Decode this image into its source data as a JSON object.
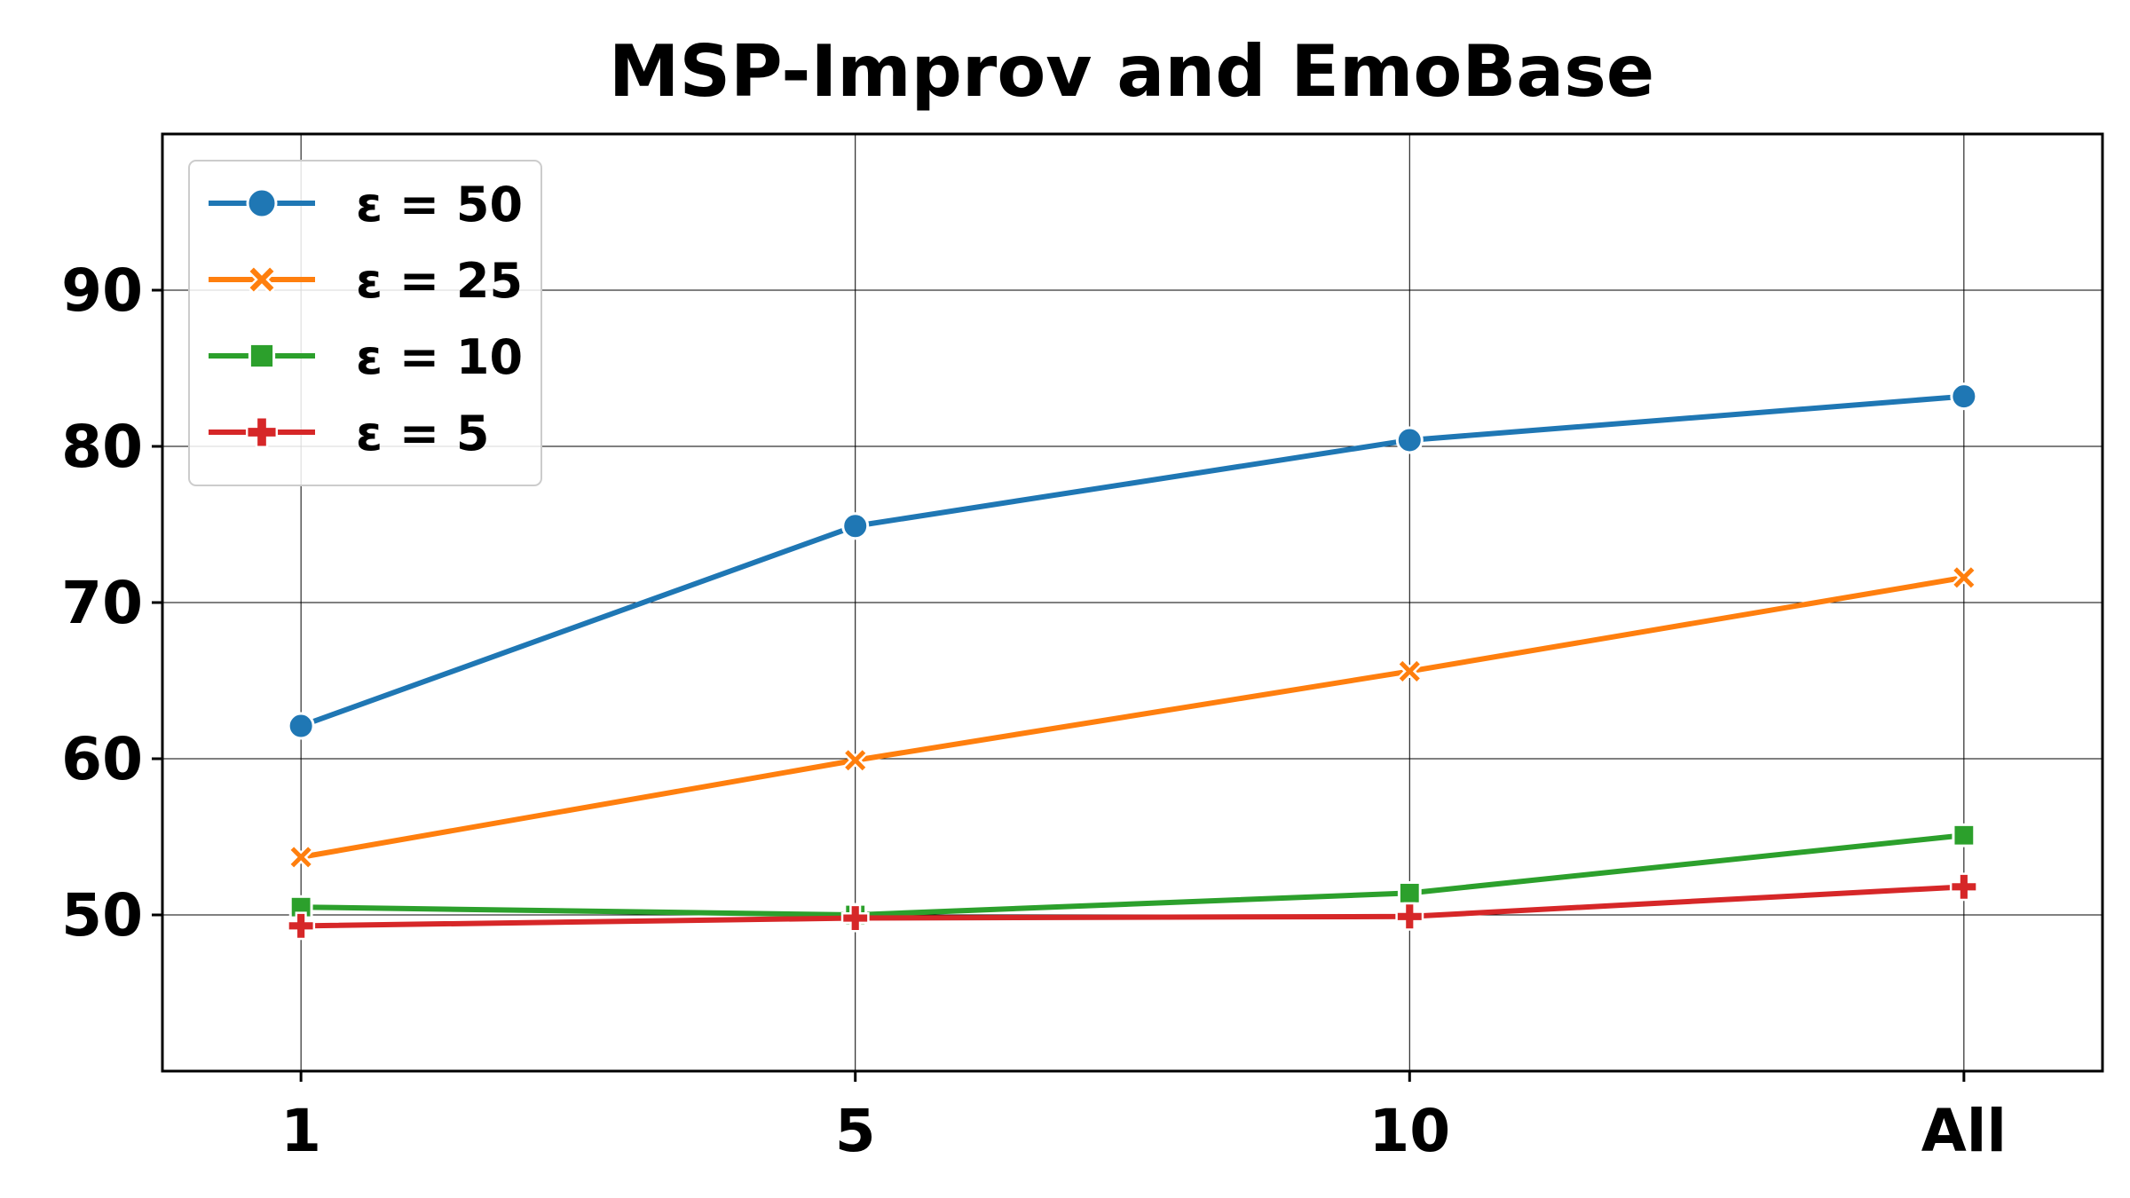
{
  "chart_data": {
    "type": "line",
    "title": "MSP-Improv and EmoBase",
    "xlabel": "",
    "ylabel": "",
    "categories": [
      "1",
      "5",
      "10",
      "All"
    ],
    "ylim": [
      40,
      100
    ],
    "yticks": [
      50,
      60,
      70,
      80,
      90
    ],
    "grid": true,
    "legend_position": "top-left",
    "series": [
      {
        "name": "ε = 50",
        "color": "#1f77b4",
        "marker": "circle",
        "values": [
          62.1,
          74.9,
          80.4,
          83.2
        ]
      },
      {
        "name": "ε = 25",
        "color": "#ff7f0e",
        "marker": "x",
        "values": [
          53.7,
          59.9,
          65.6,
          71.6
        ]
      },
      {
        "name": "ε = 10",
        "color": "#2ca02c",
        "marker": "square",
        "values": [
          50.5,
          50.0,
          51.4,
          55.1
        ]
      },
      {
        "name": "ε = 5",
        "color": "#d62728",
        "marker": "plus",
        "values": [
          49.3,
          49.8,
          49.9,
          51.8
        ]
      }
    ]
  }
}
